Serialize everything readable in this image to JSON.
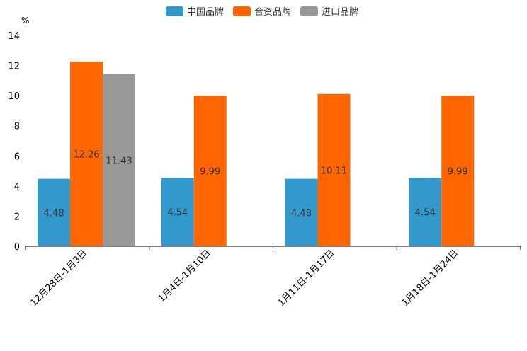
{
  "chart_data": {
    "type": "bar",
    "unit": "%",
    "categories": [
      "12月28日-1月3日",
      "1月4日-1月10日",
      "1月11日-1月17日",
      "1月18日-1月24日"
    ],
    "series": [
      {
        "name": "中国品牌",
        "color": "#3399cc",
        "values": [
          4.48,
          4.54,
          4.48,
          4.54
        ]
      },
      {
        "name": "合资品牌",
        "color": "#ff6600",
        "values": [
          12.26,
          9.99,
          10.11,
          9.99
        ]
      },
      {
        "name": "进口品牌",
        "color": "#999999",
        "values": [
          11.43,
          null,
          null,
          null
        ]
      }
    ],
    "ylim": [
      0,
      14
    ],
    "yticks": [
      0,
      2,
      4,
      6,
      8,
      10,
      12,
      14
    ],
    "legend_position": "top-center",
    "grid": false
  }
}
